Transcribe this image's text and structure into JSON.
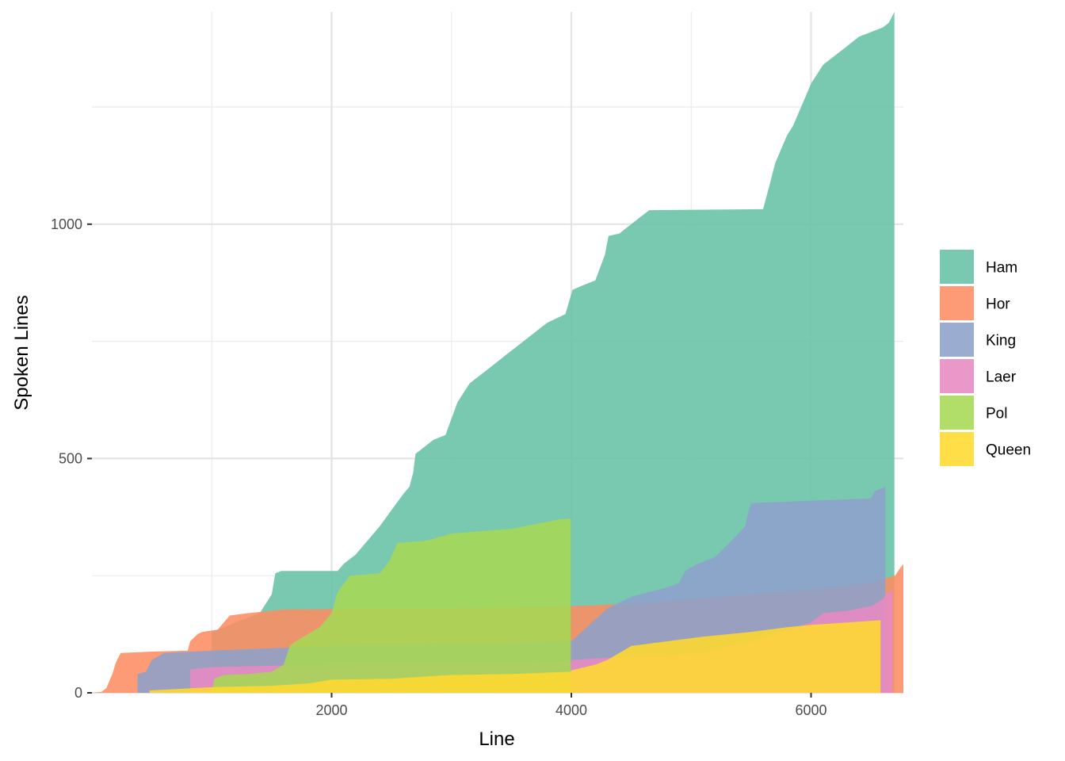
{
  "chart_data": {
    "type": "area",
    "title": "",
    "xlabel": "Line",
    "ylabel": "Spoken Lines",
    "xlim": [
      0,
      6770
    ],
    "ylim": [
      0,
      1453
    ],
    "x_ticks": [
      2000,
      4000,
      6000
    ],
    "x_tick_labels": [
      "2000",
      "4000",
      "6000"
    ],
    "y_ticks": [
      0,
      500,
      1000
    ],
    "y_tick_labels": [
      "0",
      "500",
      "1000"
    ],
    "grid": true,
    "legend_position": "right",
    "series": [
      {
        "name": "Ham",
        "color": "#66c2a5",
        "points": [
          [
            1000,
            130
          ],
          [
            1200,
            150
          ],
          [
            1400,
            170
          ],
          [
            1500,
            210
          ],
          [
            1530,
            255
          ],
          [
            1580,
            260
          ],
          [
            2050,
            260
          ],
          [
            2100,
            275
          ],
          [
            2200,
            295
          ],
          [
            2300,
            325
          ],
          [
            2400,
            355
          ],
          [
            2500,
            390
          ],
          [
            2600,
            425
          ],
          [
            2650,
            440
          ],
          [
            2680,
            470
          ],
          [
            2700,
            510
          ],
          [
            2850,
            540
          ],
          [
            2950,
            550
          ],
          [
            3050,
            620
          ],
          [
            3150,
            660
          ],
          [
            3350,
            700
          ],
          [
            3450,
            720
          ],
          [
            3550,
            740
          ],
          [
            3700,
            770
          ],
          [
            3800,
            790
          ],
          [
            3950,
            808
          ],
          [
            4010,
            860
          ],
          [
            4100,
            870
          ],
          [
            4200,
            880
          ],
          [
            4280,
            935
          ],
          [
            4310,
            975
          ],
          [
            4400,
            980
          ],
          [
            4500,
            1000
          ],
          [
            4650,
            1030
          ],
          [
            5600,
            1032
          ],
          [
            5650,
            1080
          ],
          [
            5700,
            1130
          ],
          [
            5750,
            1160
          ],
          [
            5800,
            1190
          ],
          [
            5850,
            1210
          ],
          [
            5900,
            1240
          ],
          [
            5950,
            1270
          ],
          [
            6000,
            1300
          ],
          [
            6050,
            1320
          ],
          [
            6100,
            1340
          ],
          [
            6200,
            1360
          ],
          [
            6300,
            1380
          ],
          [
            6400,
            1400
          ],
          [
            6500,
            1410
          ],
          [
            6600,
            1420
          ],
          [
            6650,
            1430
          ],
          [
            6695,
            1453
          ],
          [
            6695,
            0
          ]
        ]
      },
      {
        "name": "Hor",
        "color": "#fc8d62",
        "points": [
          [
            0,
            0
          ],
          [
            80,
            2
          ],
          [
            120,
            10
          ],
          [
            170,
            40
          ],
          [
            200,
            65
          ],
          [
            240,
            85
          ],
          [
            500,
            88
          ],
          [
            800,
            90
          ],
          [
            820,
            110
          ],
          [
            880,
            125
          ],
          [
            920,
            130
          ],
          [
            1050,
            135
          ],
          [
            1100,
            150
          ],
          [
            1150,
            165
          ],
          [
            1300,
            170
          ],
          [
            1500,
            175
          ],
          [
            1600,
            178
          ],
          [
            3000,
            180
          ],
          [
            3500,
            182
          ],
          [
            4000,
            185
          ],
          [
            4500,
            190
          ],
          [
            5000,
            200
          ],
          [
            5500,
            210
          ],
          [
            6000,
            220
          ],
          [
            6500,
            235
          ],
          [
            6700,
            250
          ],
          [
            6740,
            265
          ],
          [
            6770,
            275
          ],
          [
            6770,
            0
          ]
        ]
      },
      {
        "name": "King",
        "color": "#8da0cb",
        "points": [
          [
            380,
            0
          ],
          [
            380,
            40
          ],
          [
            450,
            45
          ],
          [
            500,
            70
          ],
          [
            600,
            85
          ],
          [
            1000,
            90
          ],
          [
            1500,
            95
          ],
          [
            2000,
            100
          ],
          [
            3000,
            105
          ],
          [
            4000,
            110
          ],
          [
            4300,
            180
          ],
          [
            4500,
            205
          ],
          [
            4800,
            225
          ],
          [
            4900,
            235
          ],
          [
            4950,
            260
          ],
          [
            5050,
            275
          ],
          [
            5200,
            290
          ],
          [
            5300,
            315
          ],
          [
            5450,
            355
          ],
          [
            5480,
            390
          ],
          [
            5500,
            405
          ],
          [
            6000,
            410
          ],
          [
            6500,
            415
          ],
          [
            6530,
            430
          ],
          [
            6620,
            440
          ],
          [
            6620,
            0
          ]
        ]
      },
      {
        "name": "Laer",
        "color": "#e78ac3",
        "points": [
          [
            820,
            0
          ],
          [
            820,
            50
          ],
          [
            1000,
            55
          ],
          [
            1500,
            58
          ],
          [
            2000,
            60
          ],
          [
            3000,
            62
          ],
          [
            3995,
            65
          ],
          [
            4000,
            70
          ],
          [
            4300,
            75
          ],
          [
            4800,
            80
          ],
          [
            5100,
            85
          ],
          [
            5500,
            110
          ],
          [
            6000,
            150
          ],
          [
            6100,
            170
          ],
          [
            6300,
            175
          ],
          [
            6500,
            185
          ],
          [
            6600,
            200
          ],
          [
            6620,
            210
          ],
          [
            6680,
            220
          ],
          [
            6680,
            0
          ]
        ]
      },
      {
        "name": "Pol",
        "color": "#a6d854",
        "points": [
          [
            1000,
            0
          ],
          [
            1020,
            30
          ],
          [
            1100,
            38
          ],
          [
            1300,
            40
          ],
          [
            1500,
            45
          ],
          [
            1600,
            60
          ],
          [
            1650,
            100
          ],
          [
            1700,
            110
          ],
          [
            1800,
            125
          ],
          [
            1900,
            140
          ],
          [
            2000,
            170
          ],
          [
            2050,
            215
          ],
          [
            2150,
            250
          ],
          [
            2400,
            255
          ],
          [
            2480,
            280
          ],
          [
            2550,
            320
          ],
          [
            2800,
            325
          ],
          [
            3000,
            340
          ],
          [
            3500,
            350
          ],
          [
            3700,
            360
          ],
          [
            3900,
            370
          ],
          [
            3995,
            372
          ],
          [
            3995,
            0
          ]
        ]
      },
      {
        "name": "Queen",
        "color": "#ffd92f",
        "points": [
          [
            480,
            0
          ],
          [
            480,
            5
          ],
          [
            700,
            8
          ],
          [
            1000,
            12
          ],
          [
            1500,
            15
          ],
          [
            1800,
            20
          ],
          [
            2000,
            28
          ],
          [
            2500,
            30
          ],
          [
            2800,
            35
          ],
          [
            3000,
            38
          ],
          [
            3500,
            40
          ],
          [
            3995,
            45
          ],
          [
            4000,
            48
          ],
          [
            4200,
            60
          ],
          [
            4300,
            70
          ],
          [
            4500,
            100
          ],
          [
            4800,
            110
          ],
          [
            5100,
            120
          ],
          [
            5500,
            130
          ],
          [
            5800,
            140
          ],
          [
            6000,
            145
          ],
          [
            6300,
            150
          ],
          [
            6580,
            155
          ],
          [
            6580,
            0
          ]
        ]
      }
    ]
  }
}
